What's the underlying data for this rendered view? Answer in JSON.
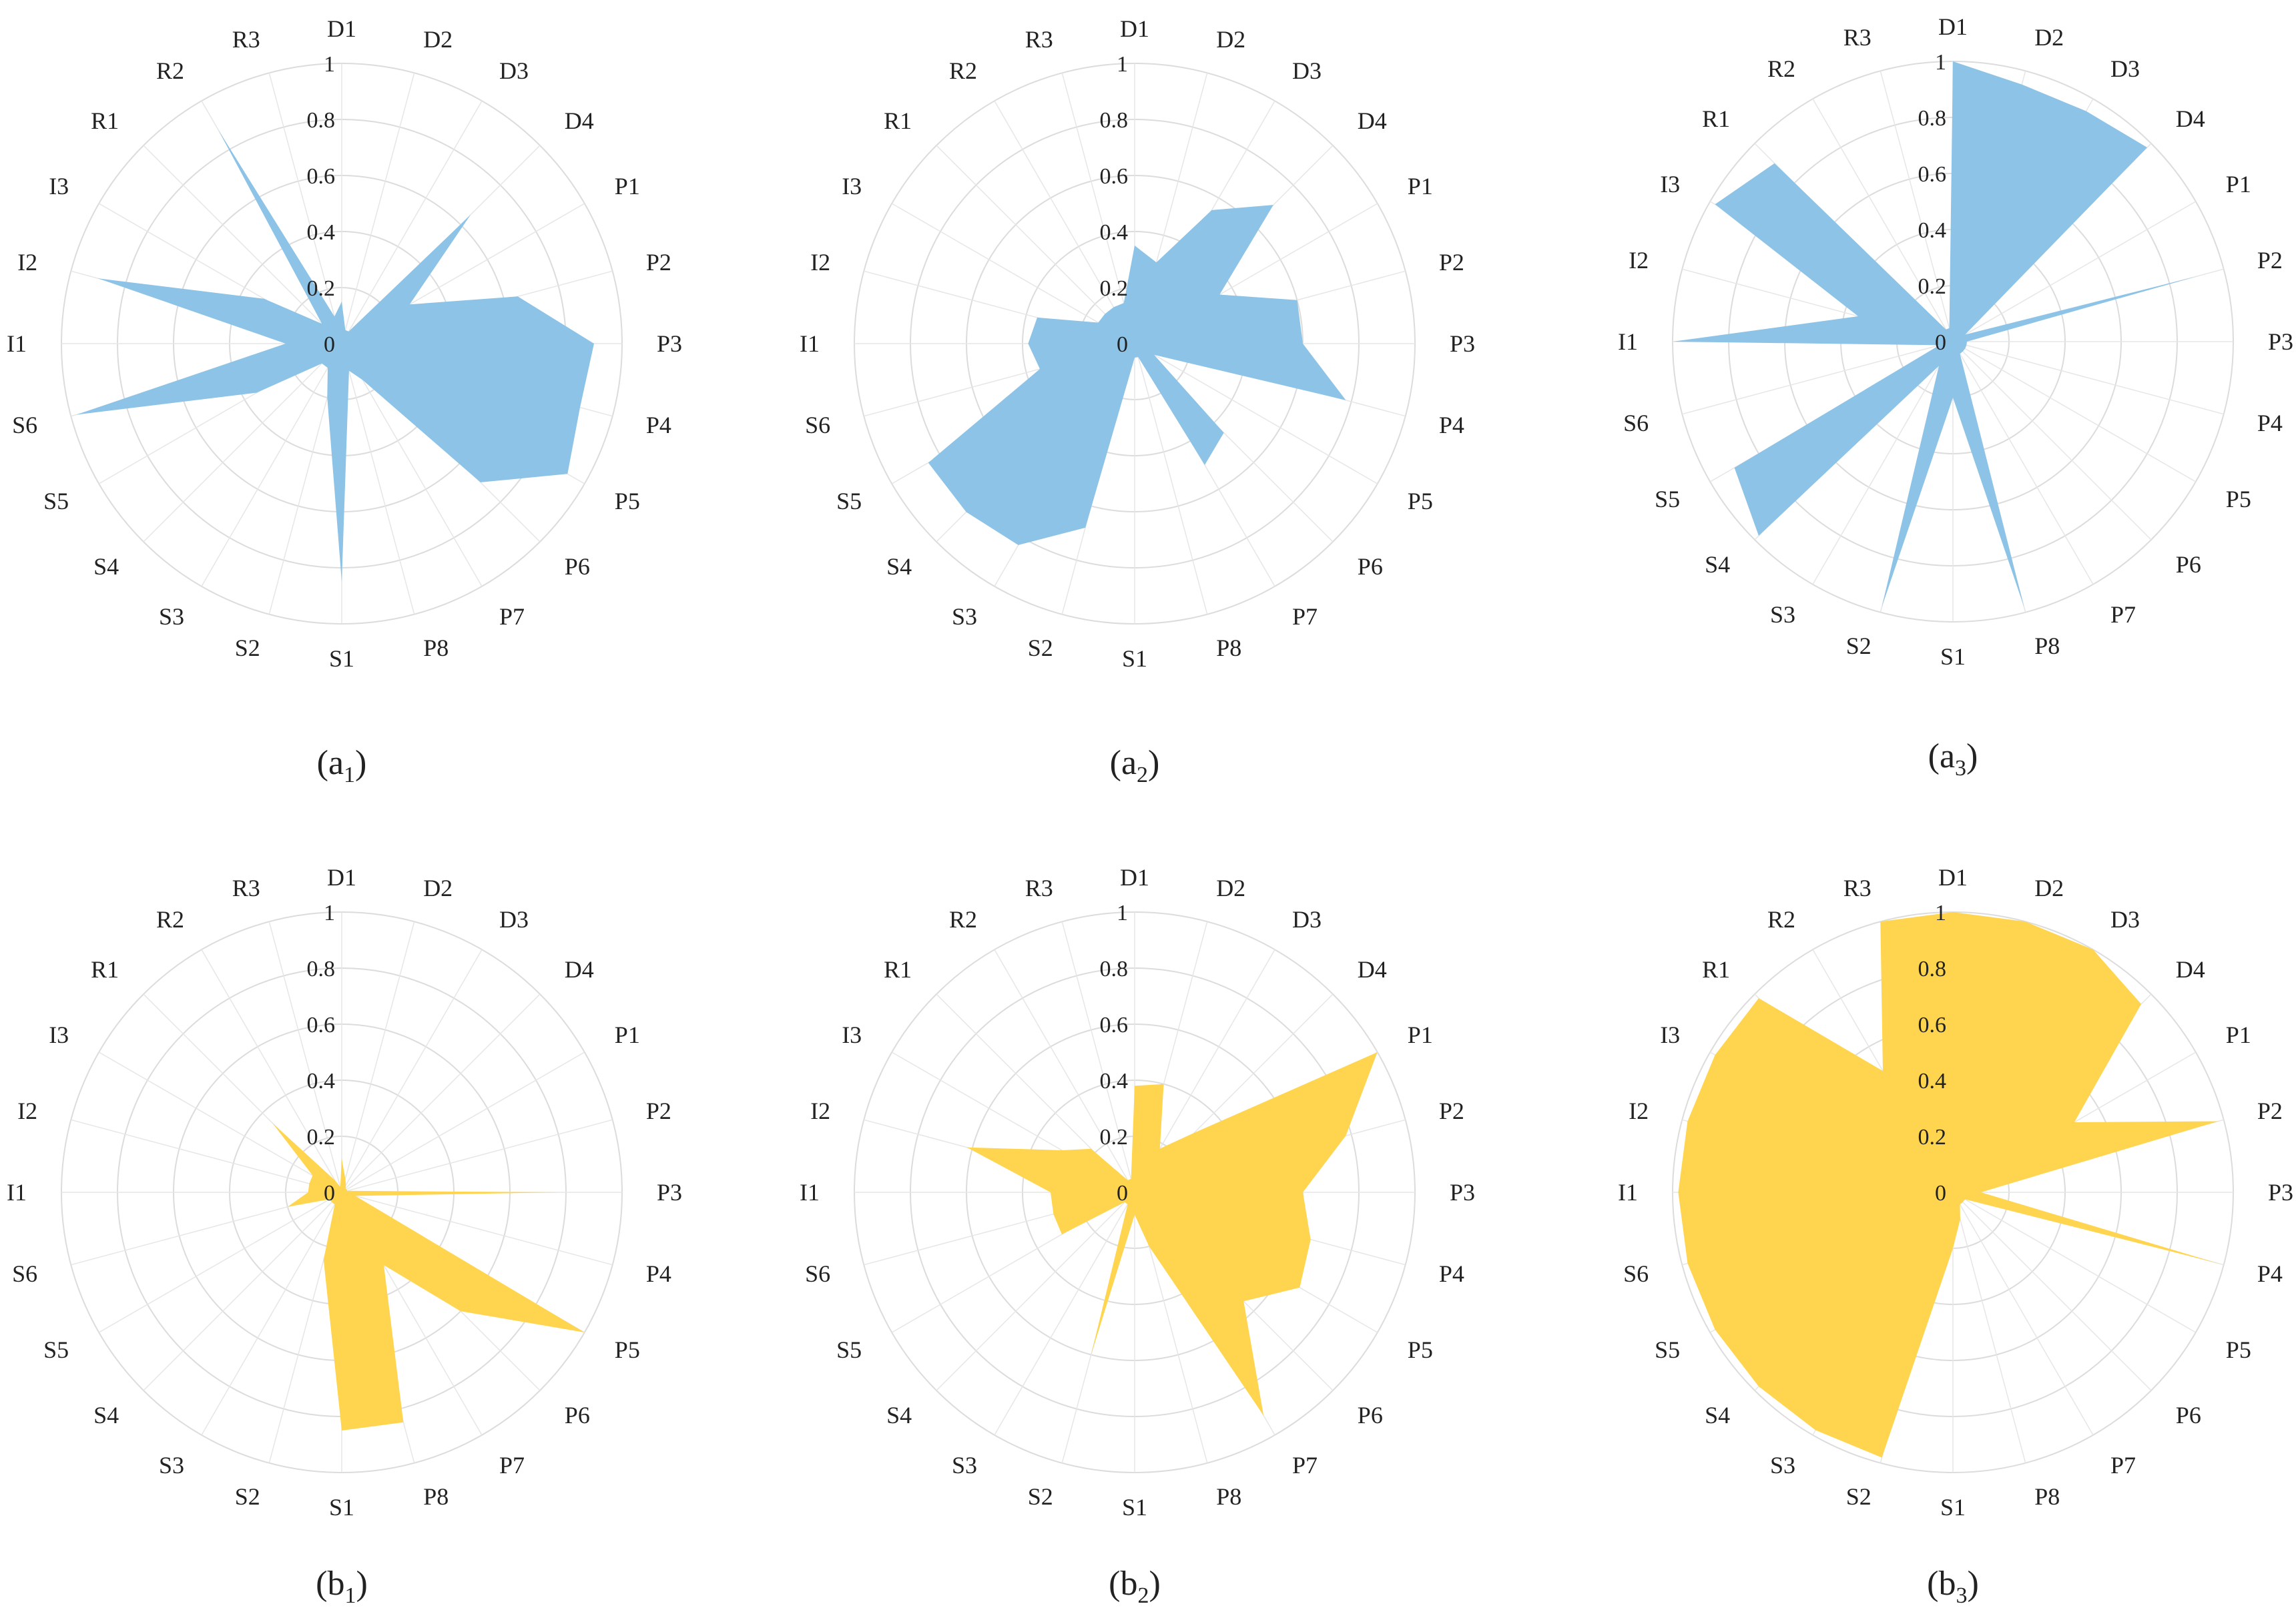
{
  "colors": {
    "a": "#8DC3E6",
    "b": "#FFD54F",
    "grid": "#dcdcdc"
  },
  "chart_data": [
    {
      "type": "radar",
      "panel": "a",
      "index": "1",
      "categories": [
        "D1",
        "D2",
        "D3",
        "D4",
        "P1",
        "P2",
        "P3",
        "P4",
        "P5",
        "P6",
        "P7",
        "P8",
        "S1",
        "S2",
        "S3",
        "S4",
        "S5",
        "S6",
        "I1",
        "I2",
        "I3",
        "R1",
        "R2",
        "R3"
      ],
      "values": [
        0.15,
        0.05,
        0.05,
        0.65,
        0.28,
        0.65,
        0.9,
        0.88,
        0.93,
        0.7,
        0.15,
        0.1,
        0.85,
        0.2,
        0.1,
        0.1,
        0.35,
        0.98,
        0.2,
        0.9,
        0.32,
        0.1,
        0.88,
        0.1
      ],
      "ticks": [
        "0",
        "0.2",
        "0.4",
        "0.6",
        "0.8",
        "1"
      ],
      "rmax": 1
    },
    {
      "type": "radar",
      "panel": "a",
      "index": "2",
      "categories": [
        "D1",
        "D2",
        "D3",
        "D4",
        "P1",
        "P2",
        "P3",
        "P4",
        "P5",
        "P6",
        "P7",
        "P8",
        "S1",
        "S2",
        "S3",
        "S4",
        "S5",
        "S6",
        "I1",
        "I2",
        "I3",
        "R1",
        "R2",
        "R3"
      ],
      "values": [
        0.35,
        0.3,
        0.55,
        0.7,
        0.35,
        0.6,
        0.6,
        0.78,
        0.08,
        0.45,
        0.5,
        0.05,
        0.05,
        0.68,
        0.83,
        0.85,
        0.85,
        0.35,
        0.38,
        0.36,
        0.15,
        0.15,
        0.15,
        0.15
      ],
      "ticks": [
        "0",
        "0.2",
        "0.4",
        "0.6",
        "0.8",
        "1"
      ],
      "rmax": 1
    },
    {
      "type": "radar",
      "panel": "a",
      "index": "3",
      "categories": [
        "D1",
        "D2",
        "D3",
        "D4",
        "P1",
        "P2",
        "P3",
        "P4",
        "P5",
        "P6",
        "P7",
        "P8",
        "S1",
        "S2",
        "S3",
        "S4",
        "S5",
        "S6",
        "I1",
        "I2",
        "I3",
        "R1",
        "R2",
        "R3"
      ],
      "values": [
        1.0,
        0.95,
        0.95,
        0.98,
        0.05,
        0.9,
        0.05,
        0.05,
        0.05,
        0.05,
        0.05,
        0.98,
        0.2,
        0.98,
        0.1,
        0.98,
        0.9,
        0.05,
        1.0,
        0.35,
        0.98,
        0.9,
        0.05,
        0.05
      ],
      "ticks": [
        "0",
        "0.2",
        "0.4",
        "0.6",
        "0.8",
        "1"
      ],
      "rmax": 1
    },
    {
      "type": "radar",
      "panel": "b",
      "index": "1",
      "categories": [
        "D1",
        "D2",
        "D3",
        "D4",
        "P1",
        "P2",
        "P3",
        "P4",
        "P5",
        "P6",
        "P7",
        "P8",
        "S1",
        "S2",
        "S3",
        "S4",
        "S5",
        "S6",
        "I1",
        "I2",
        "I3",
        "R1",
        "R2",
        "R3"
      ],
      "values": [
        0.12,
        0.05,
        0.03,
        0.02,
        0.02,
        0.02,
        0.78,
        0.05,
        1.0,
        0.6,
        0.3,
        0.85,
        0.85,
        0.25,
        0.05,
        0.05,
        0.05,
        0.2,
        0.12,
        0.12,
        0.12,
        0.35,
        0.05,
        0.02
      ],
      "ticks": [
        "0",
        "0.2",
        "0.4",
        "0.6",
        "0.8",
        "1"
      ],
      "rmax": 1
    },
    {
      "type": "radar",
      "panel": "b",
      "index": "2",
      "categories": [
        "D1",
        "D2",
        "D3",
        "D4",
        "P1",
        "P2",
        "P3",
        "P4",
        "P5",
        "P6",
        "P7",
        "P8",
        "S1",
        "S2",
        "S3",
        "S4",
        "S5",
        "S6",
        "I1",
        "I2",
        "I3",
        "R1",
        "R2",
        "R3"
      ],
      "values": [
        0.38,
        0.4,
        0.18,
        0.3,
        1.0,
        0.78,
        0.6,
        0.65,
        0.68,
        0.55,
        0.92,
        0.2,
        0.08,
        0.6,
        0.05,
        0.05,
        0.3,
        0.3,
        0.3,
        0.62,
        0.3,
        0.22,
        0.05,
        0.05
      ],
      "ticks": [
        "0",
        "0.2",
        "0.4",
        "0.6",
        "0.8",
        "1"
      ],
      "rmax": 1
    },
    {
      "type": "radar",
      "panel": "b",
      "index": "3",
      "categories": [
        "D1",
        "D2",
        "D3",
        "D4",
        "P1",
        "P2",
        "P3",
        "P4",
        "P5",
        "P6",
        "P7",
        "P8",
        "S1",
        "S2",
        "S3",
        "S4",
        "S5",
        "S6",
        "I1",
        "I2",
        "I3",
        "R1",
        "R2",
        "R3"
      ],
      "values": [
        1.0,
        1.0,
        1.0,
        0.95,
        0.5,
        0.98,
        0.1,
        0.98,
        0.05,
        0.05,
        0.05,
        0.1,
        0.2,
        0.98,
        0.98,
        0.98,
        0.98,
        0.98,
        0.98,
        0.98,
        0.98,
        0.98,
        0.5,
        1.0
      ],
      "ticks": [
        "0",
        "0.2",
        "0.4",
        "0.6",
        "0.8",
        "1"
      ],
      "rmax": 1
    }
  ]
}
